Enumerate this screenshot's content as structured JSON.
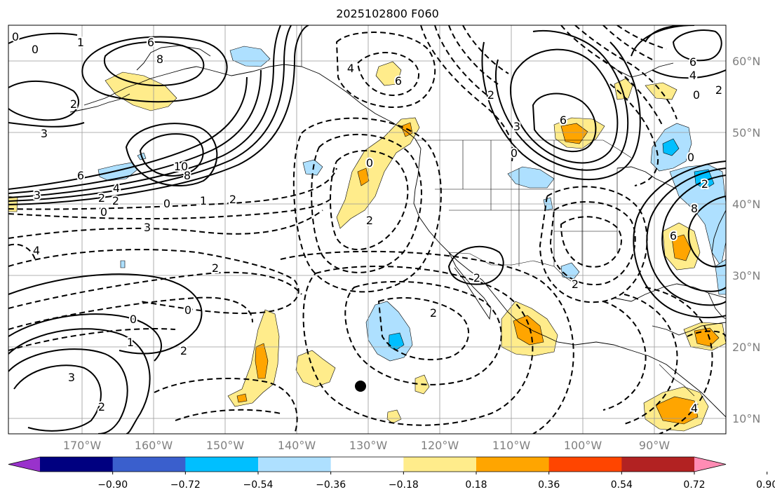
{
  "title": "2025102800 F060",
  "latitude_labels": [
    "60°N",
    "50°N",
    "40°N",
    "30°N",
    "20°N",
    "10°N"
  ],
  "longitude_labels": [
    "170°W",
    "160°W",
    "150°W",
    "140°W",
    "130°W",
    "120°W",
    "110°W",
    "100°W",
    "90°W"
  ],
  "colorbar": {
    "tick_labels": [
      "−0.90",
      "−0.72",
      "−0.54",
      "−0.36",
      "−0.18",
      "0.18",
      "0.36",
      "0.54",
      "0.72",
      "0.90"
    ],
    "colors": [
      "#9932cc",
      "#000080",
      "#3a5fcd",
      "#00bfff",
      "#aee0ff",
      "#ffffff",
      "#ffec8b",
      "#ffa500",
      "#ff4500",
      "#b22222",
      "#ff8cb4"
    ]
  },
  "contour_labels": [
    {
      "text": "0"
    },
    {
      "text": "0"
    },
    {
      "text": "1"
    },
    {
      "text": "6"
    },
    {
      "text": "8"
    },
    {
      "text": "2"
    },
    {
      "text": "3"
    },
    {
      "text": "10"
    },
    {
      "text": "8"
    },
    {
      "text": "6"
    },
    {
      "text": "4"
    },
    {
      "text": "3"
    },
    {
      "text": "2"
    },
    {
      "text": "2"
    },
    {
      "text": "0"
    },
    {
      "text": "0"
    },
    {
      "text": "1"
    },
    {
      "text": "2"
    },
    {
      "text": "3"
    },
    {
      "text": "4"
    },
    {
      "text": "2"
    },
    {
      "text": "0"
    },
    {
      "text": "0"
    },
    {
      "text": "1"
    },
    {
      "text": "3"
    },
    {
      "text": "2"
    },
    {
      "text": "4"
    },
    {
      "text": "6"
    },
    {
      "text": "0"
    },
    {
      "text": "2"
    },
    {
      "text": "2"
    },
    {
      "text": "2"
    },
    {
      "text": "6"
    },
    {
      "text": "0"
    },
    {
      "text": "2"
    },
    {
      "text": "3"
    },
    {
      "text": "6"
    },
    {
      "text": "4"
    },
    {
      "text": "2"
    },
    {
      "text": "0"
    },
    {
      "text": "6"
    },
    {
      "text": "8"
    },
    {
      "text": "0"
    },
    {
      "text": "2"
    },
    {
      "text": "2"
    },
    {
      "text": "2"
    },
    {
      "text": "4"
    }
  ],
  "marker": {
    "lat": 14.5,
    "lon": -131
  }
}
